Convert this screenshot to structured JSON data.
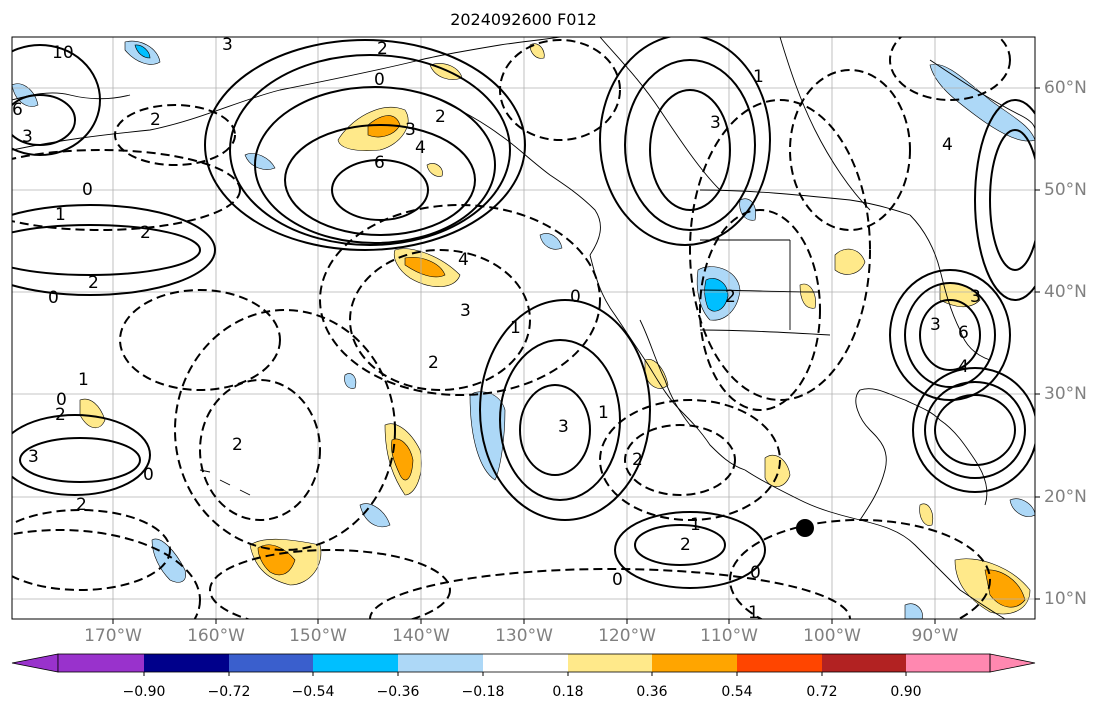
{
  "title": "2024092600 F012",
  "lon_labels": [
    "170°W",
    "160°W",
    "150°W",
    "140°W",
    "130°W",
    "120°W",
    "110°W",
    "100°W",
    "90°W"
  ],
  "lat_labels": [
    "60°N",
    "50°N",
    "40°N",
    "30°N",
    "20°N",
    "10°N"
  ],
  "colorbar": {
    "colors": [
      "#9932cc",
      "#00008b",
      "#3a5fcd",
      "#00bfff",
      "#add8f7",
      "#ffffff",
      "#ffe98a",
      "#ffa500",
      "#ff4500",
      "#b22222",
      "#ff88b0"
    ],
    "tick_labels": [
      "−0.90",
      "−0.72",
      "−0.54",
      "−0.36",
      "−0.18",
      "0.18",
      "0.36",
      "0.54",
      "0.72",
      "0.90"
    ]
  },
  "contour_labels": [
    {
      "text": "10"
    },
    {
      "text": "3"
    },
    {
      "text": "2"
    },
    {
      "text": "0"
    },
    {
      "text": "6"
    },
    {
      "text": "3"
    },
    {
      "text": "2"
    },
    {
      "text": "4"
    },
    {
      "text": "6"
    },
    {
      "text": "3"
    },
    {
      "text": "2"
    },
    {
      "text": "0"
    },
    {
      "text": "1"
    },
    {
      "text": "2"
    },
    {
      "text": "0"
    },
    {
      "text": "2"
    },
    {
      "text": "4"
    },
    {
      "text": "3"
    },
    {
      "text": "1"
    },
    {
      "text": "0"
    },
    {
      "text": "3"
    },
    {
      "text": "1"
    },
    {
      "text": "2"
    },
    {
      "text": "2"
    },
    {
      "text": "3"
    },
    {
      "text": "1"
    },
    {
      "text": "0"
    },
    {
      "text": "2"
    },
    {
      "text": "2"
    },
    {
      "text": "0"
    },
    {
      "text": "3"
    },
    {
      "text": "1"
    },
    {
      "text": "2"
    },
    {
      "text": "2"
    },
    {
      "text": "0"
    },
    {
      "text": "1"
    },
    {
      "text": "0"
    },
    {
      "text": "2"
    },
    {
      "text": "6"
    },
    {
      "text": "4"
    },
    {
      "text": "3"
    },
    {
      "text": "4"
    },
    {
      "text": "1"
    },
    {
      "text": "3"
    }
  ]
}
